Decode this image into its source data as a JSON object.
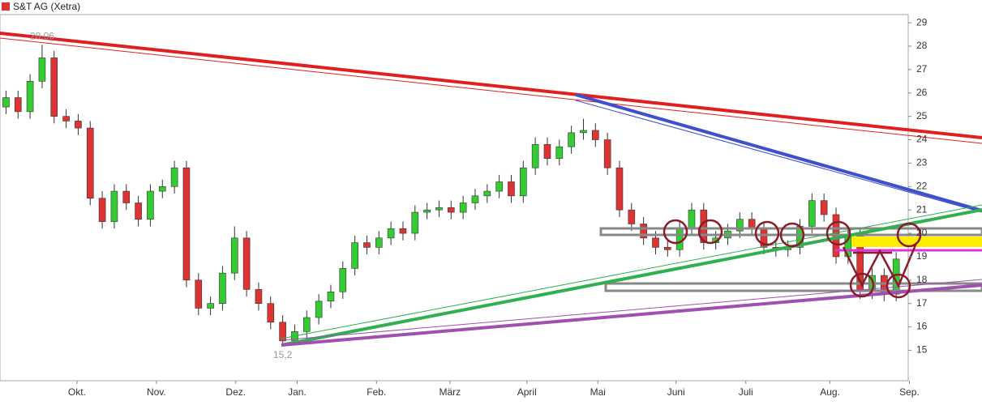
{
  "chart_data": {
    "type": "candlestick",
    "title": "S&T AG (Xetra)",
    "title_color": "#e03030",
    "up_color": "#33cc33",
    "down_color": "#dd3333",
    "grid": false,
    "open": [
      25.4,
      25.8,
      25.2,
      26.5,
      27.5,
      25.0,
      24.8,
      24.5,
      21.5,
      20.5,
      21.8,
      21.3,
      20.6,
      21.8,
      22.0,
      22.8,
      18.0,
      16.8,
      17.0,
      18.3,
      19.8,
      17.6,
      17.0,
      16.2,
      15.4,
      15.8,
      16.4,
      17.1,
      17.5,
      18.5,
      19.6,
      19.4,
      19.8,
      20.2,
      20.0,
      20.9,
      21.0,
      21.1,
      20.9,
      21.3,
      21.6,
      21.8,
      22.2,
      21.6,
      22.8,
      23.8,
      23.2,
      23.7,
      24.3,
      24.4,
      24.0,
      22.8,
      21.0,
      20.4,
      19.8,
      19.4,
      19.3,
      20.2,
      21.0,
      19.6,
      19.8,
      20.1,
      20.6,
      20.2,
      19.4,
      19.3,
      19.4,
      20.3,
      21.4,
      20.8,
      19.0,
      19.9,
      17.5,
      18.2,
      17.4
    ],
    "high": [
      26.1,
      26.1,
      26.8,
      28.06,
      27.8,
      25.3,
      25.1,
      24.8,
      21.8,
      22.1,
      22.1,
      21.6,
      22.1,
      22.3,
      23.1,
      23.1,
      18.3,
      17.3,
      18.6,
      20.3,
      20.1,
      17.9,
      17.3,
      16.5,
      16.1,
      16.7,
      17.4,
      17.8,
      18.8,
      19.9,
      19.9,
      20.1,
      20.5,
      20.5,
      21.2,
      21.3,
      21.4,
      21.4,
      21.6,
      21.9,
      22.1,
      22.5,
      22.5,
      23.1,
      24.1,
      24.1,
      24.0,
      24.6,
      24.9,
      24.7,
      24.3,
      23.1,
      21.3,
      20.7,
      20.1,
      19.7,
      20.5,
      21.3,
      21.3,
      20.1,
      20.4,
      20.9,
      20.9,
      20.5,
      19.7,
      19.7,
      20.6,
      21.7,
      21.7,
      21.1,
      20.2,
      20.2,
      18.5,
      18.5,
      19.2
    ],
    "low": [
      25.1,
      24.9,
      24.9,
      26.2,
      24.7,
      24.5,
      24.2,
      21.2,
      20.2,
      20.2,
      21.0,
      20.3,
      20.3,
      21.5,
      21.7,
      17.7,
      16.5,
      16.5,
      16.7,
      18.0,
      17.3,
      16.7,
      15.9,
      15.2,
      15.3,
      15.5,
      16.1,
      16.8,
      17.2,
      18.2,
      19.1,
      19.1,
      19.5,
      19.7,
      19.7,
      20.6,
      20.7,
      20.6,
      20.6,
      21.0,
      21.3,
      21.5,
      21.3,
      21.3,
      22.5,
      22.9,
      22.9,
      23.4,
      24.0,
      23.7,
      22.5,
      20.7,
      20.1,
      19.5,
      19.1,
      19.0,
      19.0,
      19.9,
      19.3,
      19.3,
      19.5,
      19.8,
      19.9,
      19.1,
      19.0,
      19.0,
      19.1,
      20.0,
      20.5,
      18.7,
      18.7,
      17.2,
      17.2,
      17.1,
      17.1
    ],
    "close": [
      25.8,
      25.2,
      26.5,
      27.5,
      25.0,
      24.8,
      24.5,
      21.5,
      20.5,
      21.8,
      21.3,
      20.6,
      21.8,
      22.0,
      22.8,
      18.0,
      16.8,
      17.0,
      18.3,
      19.8,
      17.6,
      17.0,
      16.2,
      15.4,
      15.8,
      16.4,
      17.1,
      17.5,
      18.5,
      19.6,
      19.4,
      19.8,
      20.2,
      20.0,
      20.9,
      21.0,
      21.1,
      20.9,
      21.3,
      21.6,
      21.8,
      22.2,
      21.6,
      22.8,
      23.8,
      23.2,
      23.7,
      24.3,
      24.4,
      24.0,
      22.8,
      21.0,
      20.4,
      19.8,
      19.4,
      19.3,
      20.2,
      21.0,
      19.6,
      19.8,
      20.1,
      20.6,
      20.2,
      19.4,
      19.3,
      19.4,
      20.3,
      21.4,
      20.8,
      19.0,
      19.9,
      17.5,
      18.2,
      17.4,
      18.9
    ],
    "xlim": [
      0,
      75.5
    ],
    "xticks": [
      {
        "value": 6.4,
        "label": "Okt."
      },
      {
        "value": 13.0,
        "label": "Nov."
      },
      {
        "value": 19.6,
        "label": "Dez."
      },
      {
        "value": 24.7,
        "label": "Jan."
      },
      {
        "value": 31.3,
        "label": "Feb."
      },
      {
        "value": 37.4,
        "label": "März"
      },
      {
        "value": 43.8,
        "label": "April"
      },
      {
        "value": 49.7,
        "label": "Mai"
      },
      {
        "value": 56.2,
        "label": "Juni"
      },
      {
        "value": 62.0,
        "label": "Juli"
      },
      {
        "value": 69.0,
        "label": "Aug."
      },
      {
        "value": 75.6,
        "label": "Sep."
      }
    ],
    "ylim": [
      13.7,
      29.35
    ],
    "yticks": [
      15,
      16,
      17,
      18,
      19,
      20,
      21,
      22,
      23,
      24,
      25,
      26,
      27,
      28,
      29
    ],
    "annotations": [
      {
        "text": "28.06",
        "at": 3
      },
      {
        "text": "15,2",
        "at": 23
      }
    ]
  }
}
